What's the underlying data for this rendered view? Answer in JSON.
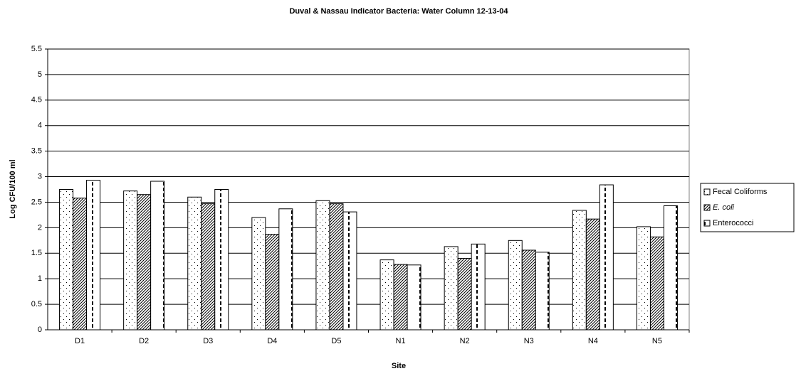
{
  "chart_data": {
    "type": "bar",
    "title": "Duval & Nassau Indicator Bacteria: Water Column 12-13-04",
    "x_label": "Site",
    "y_label": "Log CFU/100 ml",
    "categories": [
      "D1",
      "D2",
      "D3",
      "D4",
      "D5",
      "N1",
      "N2",
      "N3",
      "N4",
      "N5"
    ],
    "series": [
      {
        "name": "Fecal Coliforms",
        "color": "#000000",
        "pattern": "dots",
        "values": [
          2.75,
          2.72,
          2.6,
          2.2,
          2.53,
          1.37,
          1.63,
          1.75,
          2.34,
          2.02
        ]
      },
      {
        "name": "E. coli",
        "color": "#000000",
        "pattern": "diagonal",
        "italic": true,
        "values": [
          2.58,
          2.65,
          2.47,
          1.87,
          2.47,
          1.28,
          1.4,
          1.56,
          2.17,
          1.82
        ]
      },
      {
        "name": "Enterococci",
        "color": "#000000",
        "pattern": "dashed",
        "values": [
          2.93,
          2.91,
          2.75,
          2.37,
          2.31,
          1.27,
          1.68,
          1.52,
          2.84,
          2.43
        ]
      }
    ],
    "ylim": [
      0,
      5.5
    ],
    "yticks": [
      0,
      0.5,
      1,
      1.5,
      2,
      2.5,
      3,
      3.5,
      4,
      4.5,
      5,
      5.5
    ],
    "grid": true,
    "legend": "right"
  }
}
